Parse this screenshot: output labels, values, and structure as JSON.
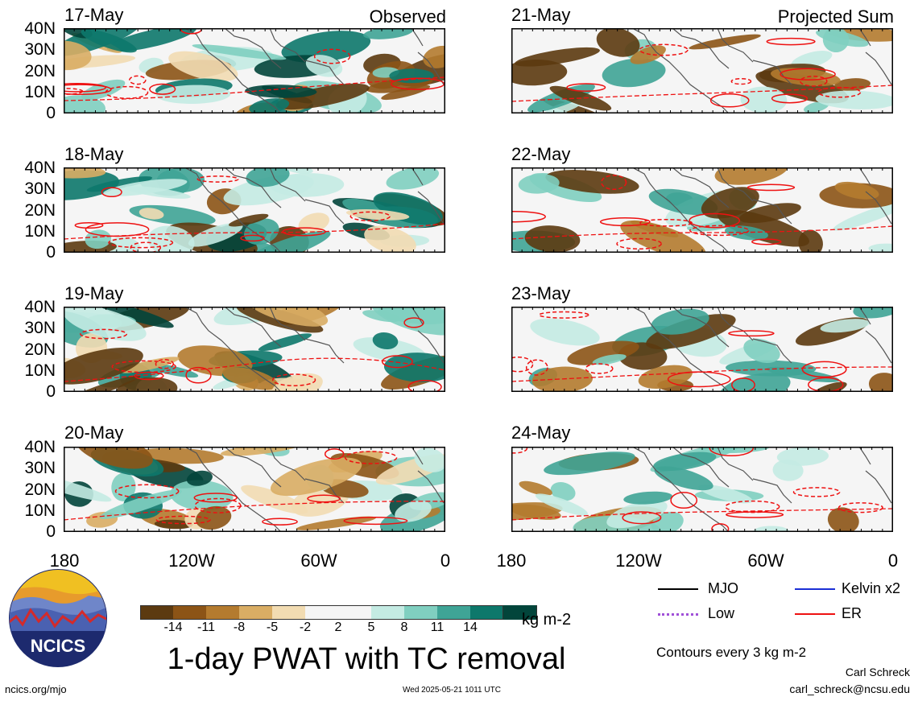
{
  "title": "1-day PWAT with TC removal",
  "header_labels": {
    "observed": "Observed",
    "projected": "Projected Sum"
  },
  "colors": {
    "negative": [
      "#5c3a10",
      "#8c5416",
      "#b47b2f",
      "#d9ad64",
      "#f2dcb2"
    ],
    "neutral": "#f5f5f5",
    "positive": [
      "#c4ebe3",
      "#80cfc0",
      "#3fa496",
      "#0d786b",
      "#02453b"
    ],
    "er_contour": "#ee1111",
    "mjo": "#000000",
    "kelvin": "#1b2fd6",
    "low": "#a050d8",
    "land_outline": "#555555"
  },
  "panels_observed": [
    {
      "date": "17-May"
    },
    {
      "date": "18-May"
    },
    {
      "date": "19-May"
    },
    {
      "date": "20-May"
    }
  ],
  "panels_projected": [
    {
      "date": "21-May"
    },
    {
      "date": "22-May"
    },
    {
      "date": "23-May"
    },
    {
      "date": "24-May"
    }
  ],
  "axes": {
    "y_ticks": [
      "40N",
      "30N",
      "20N",
      "10N",
      "0"
    ],
    "x_ticks_left": [
      "180",
      "120W",
      "60W",
      "0"
    ],
    "x_ticks_right": [
      "180",
      "120W",
      "60W",
      "0"
    ]
  },
  "colorbar": {
    "ticks": [
      "-14",
      "-11",
      "-8",
      "-5",
      "-2",
      "2",
      "5",
      "8",
      "11",
      "14"
    ],
    "units": "kg m-2"
  },
  "legend": {
    "mjo": "MJO",
    "kelvin": "Kelvin x2",
    "low": "Low",
    "er": "ER",
    "contour_note": "Contours every 3 kg m-2"
  },
  "footer": {
    "logo_text": "NCICS",
    "url": "ncics.org/mjo",
    "timestamp": "Wed 2025-05-21 1011 UTC",
    "author": "Carl Schreck",
    "email": "carl_schreck@ncsu.edu"
  },
  "chart_data": {
    "type": "heatmap",
    "title": "1-day PWAT with TC removal",
    "variable": "precipitable water anomaly",
    "units": "kg m-2",
    "x_range": [
      "180",
      "0"
    ],
    "y_range": [
      "0",
      "40N"
    ],
    "color_levels": [
      -14,
      -11,
      -8,
      -5,
      -2,
      2,
      5,
      8,
      11,
      14
    ],
    "contour_interval": 3,
    "contour_series": [
      "MJO",
      "Kelvin x2",
      "Low",
      "ER"
    ],
    "panels": [
      "17-May",
      "18-May",
      "19-May",
      "20-May",
      "21-May",
      "22-May",
      "23-May",
      "24-May"
    ]
  }
}
